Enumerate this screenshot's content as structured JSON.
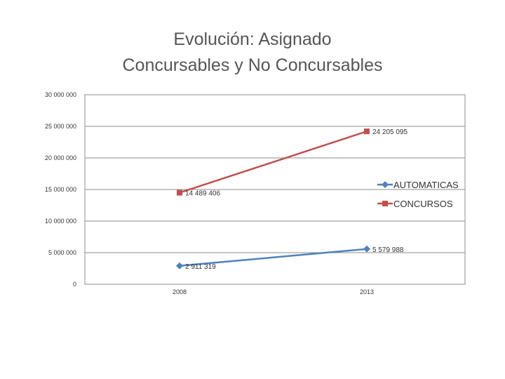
{
  "chart_data": {
    "type": "line",
    "title_lines": [
      "Evolución: Asignado",
      "Concursables y No Concursables"
    ],
    "categories": [
      "2008",
      "2013"
    ],
    "series": [
      {
        "name": "AUTOMATICAS",
        "values": [
          2911319,
          5579988
        ],
        "labels": [
          "2 911 319",
          "5 579 988"
        ],
        "color": "#4F81BD",
        "marker": "diamond"
      },
      {
        "name": "CONCURSOS",
        "values": [
          14489406,
          24205095
        ],
        "labels": [
          "14 489 406",
          "24 205 095"
        ],
        "color": "#C0504D",
        "marker": "square"
      }
    ],
    "yticks": [
      0,
      5000000,
      10000000,
      15000000,
      20000000,
      25000000,
      30000000
    ],
    "ytick_labels": [
      "0",
      "5 000 000",
      "10 000 000",
      "15 000 000",
      "20 000 000",
      "25 000 000",
      "30 000 000"
    ],
    "ylim": [
      0,
      30000000
    ],
    "grid": "horizontal",
    "legend_position": "right"
  }
}
